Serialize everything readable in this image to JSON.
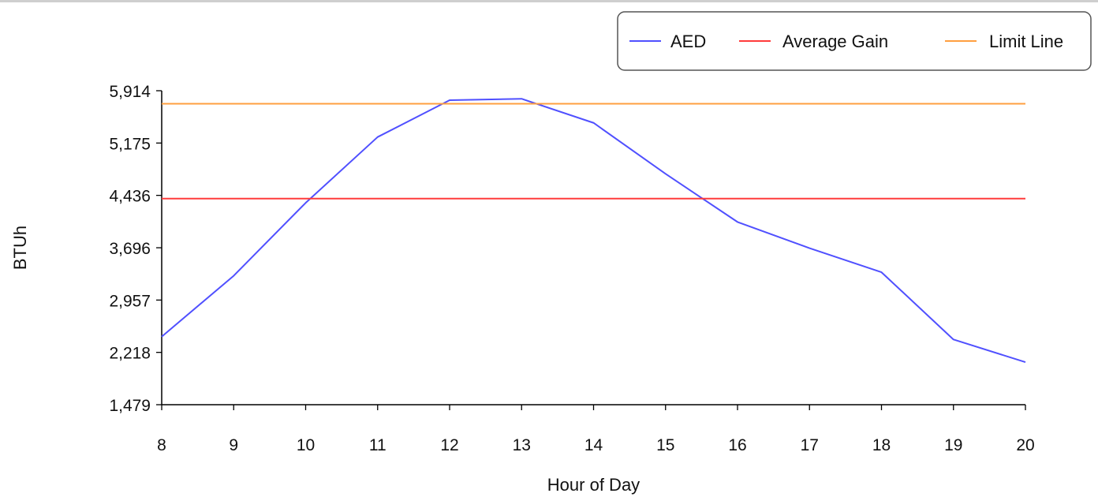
{
  "chart_data": {
    "type": "line",
    "title": "",
    "xlabel": "Hour of Day",
    "ylabel": "BTUh",
    "x": [
      8,
      9,
      10,
      11,
      12,
      13,
      14,
      15,
      16,
      17,
      18,
      19,
      20
    ],
    "x_tick_labels": [
      "8",
      "9",
      "10",
      "11",
      "12",
      "13",
      "14",
      "15",
      "16",
      "17",
      "18",
      "19",
      "20"
    ],
    "xlim": [
      8,
      20
    ],
    "y_tick_values": [
      1479,
      2218,
      2957,
      3696,
      4436,
      5175,
      5914
    ],
    "y_tick_labels": [
      "1,479",
      "2,218",
      "2,957",
      "3,696",
      "4,436",
      "5,175",
      "5,914"
    ],
    "ylim": [
      1479,
      5914
    ],
    "grid": false,
    "legend_position": "top-right",
    "series": [
      {
        "name": "AED",
        "kind": "line",
        "color": "#5050ff",
        "values": [
          2440,
          3300,
          4330,
          5260,
          5780,
          5800,
          5460,
          4740,
          4060,
          3690,
          3350,
          2400,
          2080
        ]
      },
      {
        "name": "Average Gain",
        "kind": "hline",
        "color": "#ff3b3b",
        "value": 4390
      },
      {
        "name": "Limit Line",
        "kind": "hline",
        "color": "#ff9f40",
        "value": 5730
      }
    ]
  }
}
